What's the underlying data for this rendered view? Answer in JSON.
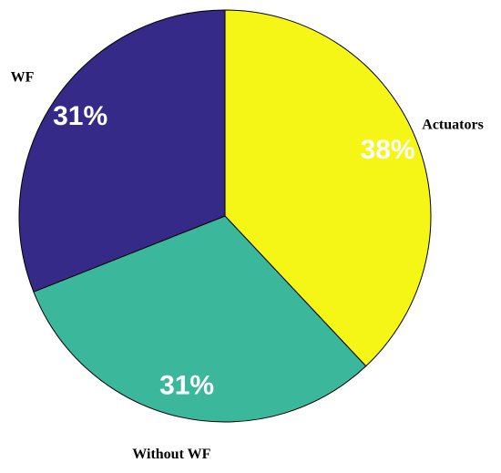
{
  "chart_data": {
    "type": "pie",
    "categories": [
      "Actuators",
      "Without WF",
      "WF"
    ],
    "values": [
      38,
      31,
      31
    ],
    "value_labels": [
      "38%",
      "31%",
      "31%"
    ],
    "colors": [
      "#f5f516",
      "#3bb89c",
      "#352a87"
    ]
  }
}
